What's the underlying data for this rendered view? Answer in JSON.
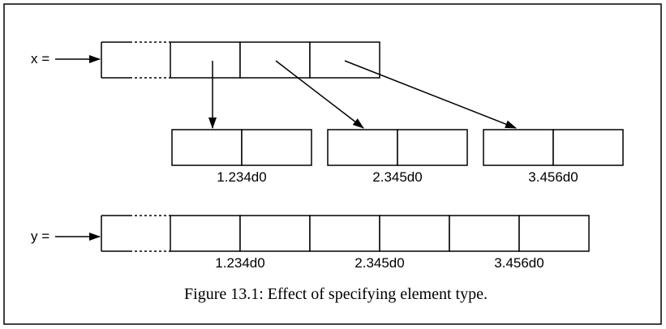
{
  "labels": {
    "x": "x =",
    "y": "y ="
  },
  "values": [
    "1.234d0",
    "2.345d0",
    "3.456d0"
  ],
  "caption": "Figure 13.1: Effect of specifying element type."
}
